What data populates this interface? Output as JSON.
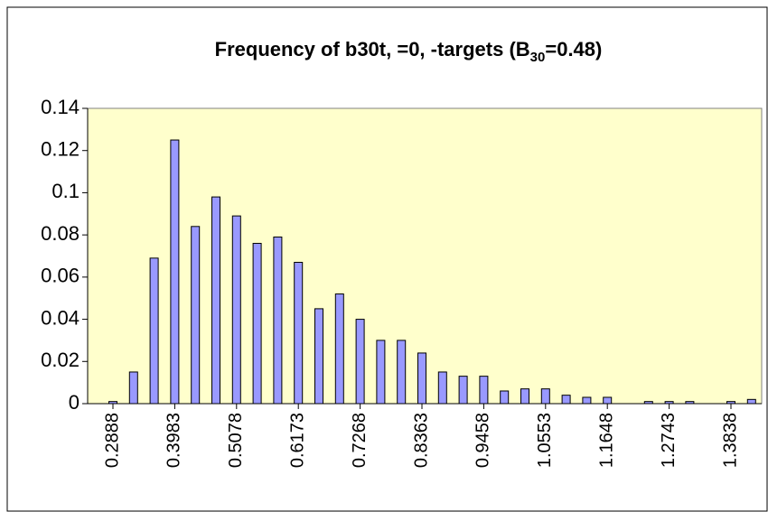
{
  "chart_data": {
    "type": "bar",
    "title": "Frequency of b30t,  =0,   -targets (B",
    "title_subscript": "30",
    "title_suffix": "=0.48)",
    "categories": [
      "0.2888",
      null,
      null,
      "0.3983",
      null,
      null,
      "0.5078",
      null,
      null,
      "0.6173",
      null,
      null,
      "0.7268",
      null,
      null,
      "0.8363",
      null,
      null,
      "0.9458",
      null,
      null,
      "1.0553",
      null,
      null,
      "1.1648",
      null,
      null,
      "1.2743",
      null,
      null,
      "1.3838",
      null
    ],
    "values": [
      0.001,
      0.015,
      0.069,
      0.125,
      0.084,
      0.098,
      0.089,
      0.076,
      0.079,
      0.067,
      0.045,
      0.052,
      0.04,
      0.03,
      0.03,
      0.024,
      0.015,
      0.013,
      0.013,
      0.006,
      0.007,
      0.007,
      0.004,
      0.003,
      0.003,
      0,
      0.001,
      0.001,
      0.001,
      0,
      0.001,
      0.002
    ],
    "color": "#9999ff",
    "plot_background": "#ffffcc",
    "ylim": [
      0,
      0.14
    ],
    "yticks": [
      0,
      0.02,
      0.04,
      0.06,
      0.08,
      0.1,
      0.12,
      0.14
    ],
    "grid": false
  }
}
